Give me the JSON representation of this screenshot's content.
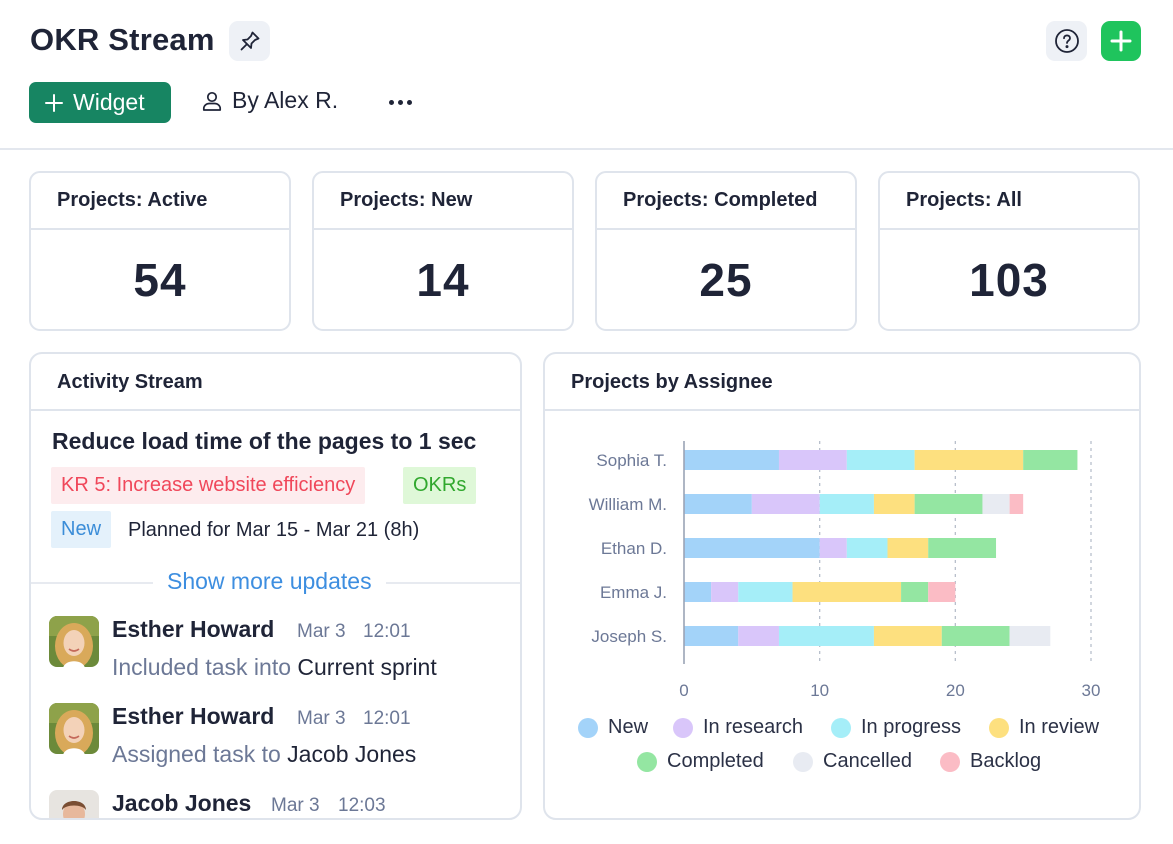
{
  "header": {
    "title": "OKR Stream",
    "pin_icon": "pin-icon",
    "help_icon": "help-circle-icon",
    "add_icon": "plus-icon",
    "widget_label": "Widget",
    "by_user_label": "By Alex R.",
    "more_icon": "more-horizontal-icon"
  },
  "stats": [
    {
      "label": "Projects: Active",
      "value": "54"
    },
    {
      "label": "Projects: New",
      "value": "14"
    },
    {
      "label": "Projects: Completed",
      "value": "25"
    },
    {
      "label": "Projects: All",
      "value": "103"
    }
  ],
  "activity": {
    "title": "Activity Stream",
    "task_title": "Reduce load time of the pages to 1 sec",
    "tags": {
      "kr": "KR 5: Increase website efficiency",
      "okr": "OKRs",
      "status": "New"
    },
    "planned": "Planned for Mar 15 - Mar 21 (8h)",
    "show_more": "Show more updates",
    "entries": [
      {
        "name": "Esther Howard",
        "date": "Mar 3",
        "time": "12:01",
        "action": "Included task into",
        "target": "Current sprint"
      },
      {
        "name": "Esther Howard",
        "date": "Mar 3",
        "time": "12:01",
        "action": "Assigned task to",
        "target": "Jacob Jones"
      },
      {
        "name": "Jacob Jones",
        "date": "Mar 3",
        "time": "12:03"
      }
    ]
  },
  "assignee_panel": {
    "title": "Projects by Assignee"
  },
  "colors": {
    "accent": "#178562",
    "add_button": "#1fc45d",
    "new": "#a3d3f9",
    "in_research": "#d9c6fa",
    "in_progress": "#a5eef8",
    "in_review": "#fde07f",
    "completed": "#94e6a2",
    "cancelled": "#e8ebf2",
    "backlog": "#fbbcc5"
  },
  "chart_data": {
    "type": "bar",
    "orientation": "horizontal",
    "stacked": true,
    "categories": [
      "Sophia T.",
      "William M.",
      "Ethan D.",
      "Emma J.",
      "Joseph S."
    ],
    "series": [
      {
        "name": "New",
        "values": [
          7,
          5,
          10,
          2,
          4
        ]
      },
      {
        "name": "In research",
        "values": [
          5,
          5,
          2,
          2,
          3
        ]
      },
      {
        "name": "In progress",
        "values": [
          5,
          4,
          3,
          4,
          7
        ]
      },
      {
        "name": "In review",
        "values": [
          8,
          3,
          3,
          8,
          5
        ]
      },
      {
        "name": "Completed",
        "values": [
          4,
          5,
          5,
          2,
          5
        ]
      },
      {
        "name": "Cancelled",
        "values": [
          0,
          2,
          0,
          0,
          3
        ]
      },
      {
        "name": "Backlog",
        "values": [
          0,
          1,
          0,
          2,
          0
        ]
      }
    ],
    "xlim": [
      0,
      30
    ],
    "x_ticks": [
      "0",
      "10",
      "20",
      "30"
    ],
    "grid": "vertical dashed",
    "legend_position": "bottom"
  }
}
